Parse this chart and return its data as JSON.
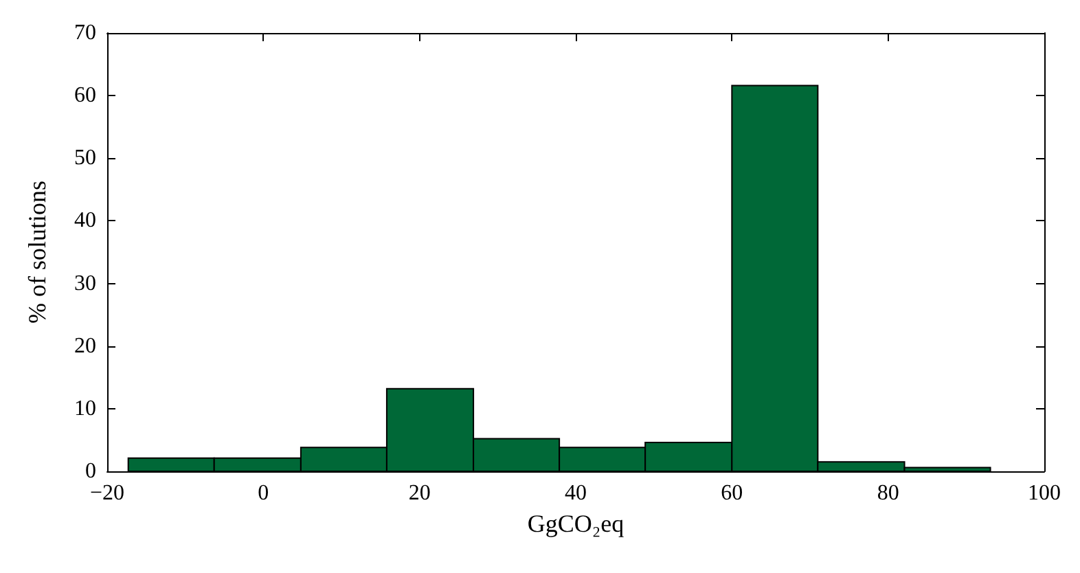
{
  "chart_data": {
    "type": "histogram",
    "xlabel": "GgCO₂eq",
    "ylabel": "% of solutions",
    "bins": [
      -17.3,
      -6.3,
      4.8,
      15.8,
      26.9,
      37.9,
      48.9,
      60,
      71,
      82.1,
      93.1
    ],
    "values": [
      2.1,
      2.1,
      3.8,
      13.2,
      5.2,
      3.8,
      4.6,
      61.6,
      1.5,
      0.6
    ],
    "color": "#006837",
    "xlim": [
      -20,
      100
    ],
    "xticks": [
      {
        "value": -20,
        "label": "−20"
      },
      0,
      20,
      40,
      60,
      80,
      100
    ],
    "ylim": [
      0,
      70
    ],
    "yticks": [
      0,
      10,
      20,
      30,
      40,
      50,
      60,
      70
    ],
    "grid": false
  }
}
